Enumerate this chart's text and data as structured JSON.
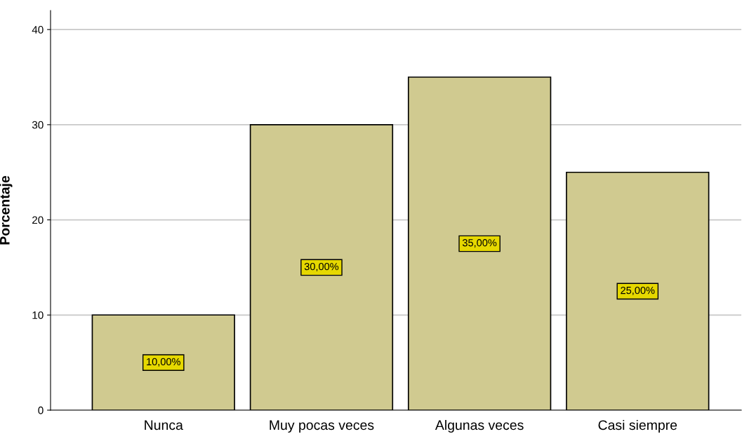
{
  "chart_data": {
    "type": "bar",
    "ylabel": "Porcentaje",
    "categories": [
      "Nunca",
      "Muy pocas veces",
      "Algunas veces",
      "Casi siempre"
    ],
    "values": [
      10,
      30,
      35,
      25
    ],
    "value_labels": [
      "10,00%",
      "30,00%",
      "35,00%",
      "25,00%"
    ],
    "color": "#d0ca90",
    "ylim": [
      0,
      42
    ],
    "yticks": [
      0,
      10,
      20,
      30,
      40
    ],
    "grid": "y"
  }
}
